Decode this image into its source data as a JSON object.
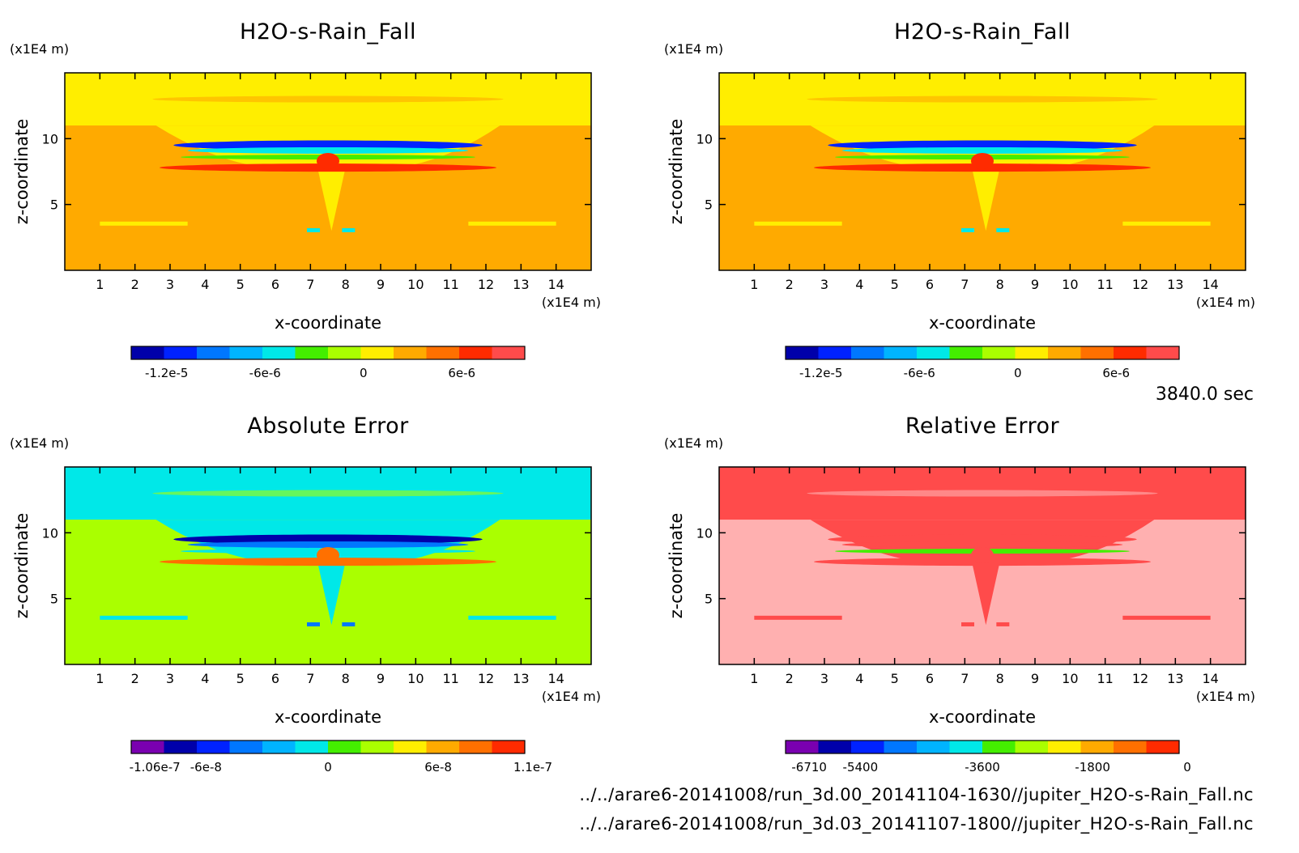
{
  "colors": {
    "frame": "#000000",
    "palette": [
      "#7a00b0",
      "#0000aa",
      "#0022ff",
      "#0077ff",
      "#00b4ff",
      "#00e8e8",
      "#44ee00",
      "#aaff00",
      "#ffee00",
      "#ffaa00",
      "#ff7000",
      "#ff2b00",
      "#ff4b4b",
      "#ffb0b0"
    ]
  },
  "time_label": "3840.0 sec",
  "footer": {
    "file1": "../../arare6-20141008/run_3d.00_20141104-1630//jupiter_H2O-s-Rain_Fall.nc",
    "file2": "../../arare6-20141008/run_3d.03_20141107-1800//jupiter_H2O-s-Rain_Fall.nc"
  },
  "chart_data": [
    {
      "type": "heatmap",
      "title": "H2O-s-Rain_Fall",
      "xlabel": "x-coordinate",
      "ylabel": "z-coordinate",
      "x_unit": "(x1E4 m)",
      "y_unit": "(x1E4 m)",
      "xlim": [
        0,
        15
      ],
      "ylim": [
        0,
        15
      ],
      "x_ticks": [
        1,
        2,
        3,
        4,
        5,
        6,
        7,
        8,
        9,
        10,
        11,
        12,
        13,
        14
      ],
      "y_ticks": [
        5,
        10
      ],
      "colorbar": {
        "levels": 12,
        "tick_labels": [
          "-1.2e-5",
          "-6e-6",
          "0",
          "6e-6"
        ]
      }
    },
    {
      "type": "heatmap",
      "title": "H2O-s-Rain_Fall",
      "xlabel": "x-coordinate",
      "ylabel": "z-coordinate",
      "x_unit": "(x1E4 m)",
      "y_unit": "(x1E4 m)",
      "xlim": [
        0,
        15
      ],
      "ylim": [
        0,
        15
      ],
      "x_ticks": [
        1,
        2,
        3,
        4,
        5,
        6,
        7,
        8,
        9,
        10,
        11,
        12,
        13,
        14
      ],
      "y_ticks": [
        5,
        10
      ],
      "colorbar": {
        "levels": 12,
        "tick_labels": [
          "-1.2e-5",
          "-6e-6",
          "0",
          "6e-6"
        ]
      }
    },
    {
      "type": "heatmap",
      "title": "Absolute Error",
      "xlabel": "x-coordinate",
      "ylabel": "z-coordinate",
      "x_unit": "(x1E4 m)",
      "y_unit": "(x1E4 m)",
      "xlim": [
        0,
        15
      ],
      "ylim": [
        0,
        15
      ],
      "x_ticks": [
        1,
        2,
        3,
        4,
        5,
        6,
        7,
        8,
        9,
        10,
        11,
        12,
        13,
        14
      ],
      "y_ticks": [
        5,
        10
      ],
      "colorbar": {
        "levels": 12,
        "tick_labels": [
          "-1.06e-7",
          "-6e-8",
          "0",
          "6e-8",
          "1.1e-7"
        ]
      }
    },
    {
      "type": "heatmap",
      "title": "Relative Error",
      "xlabel": "x-coordinate",
      "ylabel": "z-coordinate",
      "x_unit": "(x1E4 m)",
      "y_unit": "(x1E4 m)",
      "xlim": [
        0,
        15
      ],
      "ylim": [
        0,
        15
      ],
      "x_ticks": [
        1,
        2,
        3,
        4,
        5,
        6,
        7,
        8,
        9,
        10,
        11,
        12,
        13,
        14
      ],
      "y_ticks": [
        5,
        10
      ],
      "colorbar": {
        "levels": 12,
        "tick_labels": [
          "-6710",
          "-5400",
          "-3600",
          "-1800",
          "0"
        ]
      }
    }
  ]
}
